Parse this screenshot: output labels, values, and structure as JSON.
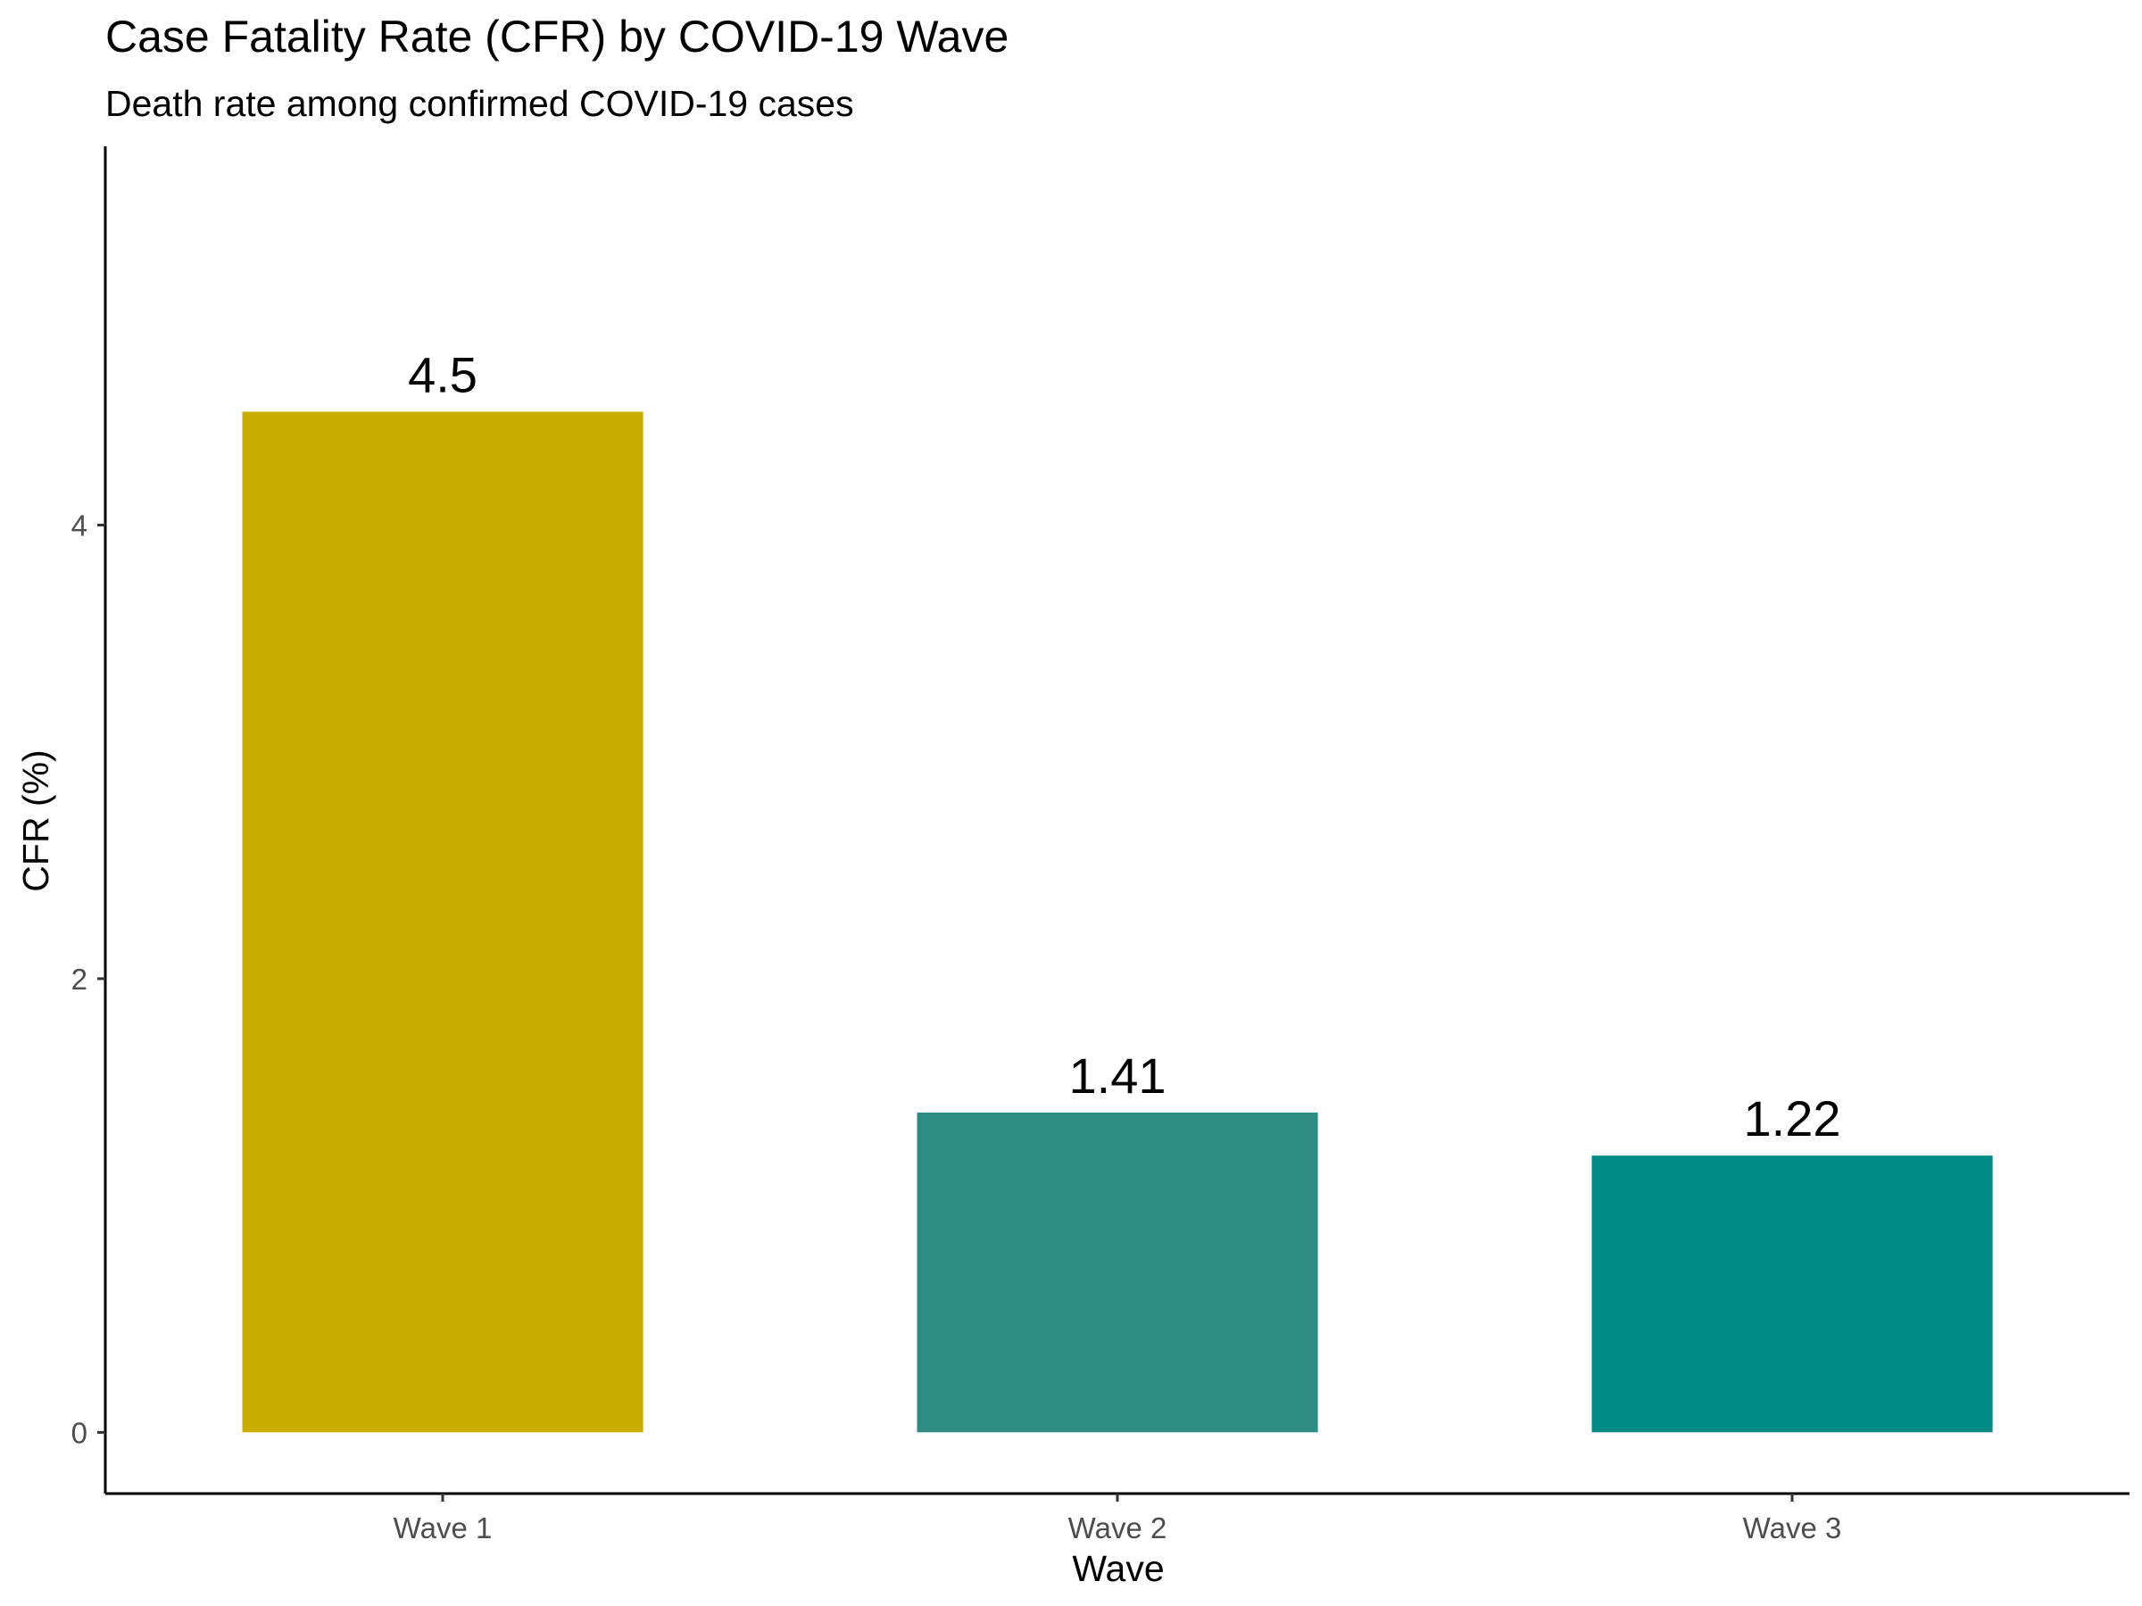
{
  "chart_data": {
    "type": "bar",
    "title": "Case Fatality Rate (CFR) by COVID-19 Wave",
    "subtitle": "Death rate among confirmed COVID-19 cases",
    "xlabel": "Wave",
    "ylabel": "CFR (%)",
    "categories": [
      "Wave 1",
      "Wave 2",
      "Wave 3"
    ],
    "values": [
      4.5,
      1.41,
      1.22
    ],
    "value_labels": [
      "4.5",
      "1.41",
      "1.22"
    ],
    "colors": [
      "#CCAE00",
      "#2F8C84",
      "#008B87"
    ],
    "ylim": [
      -0.27,
      5.67
    ],
    "yticks": [
      0,
      2,
      4
    ],
    "ytick_labels": [
      "0",
      "2",
      "4"
    ],
    "grid": false,
    "legend": "none"
  }
}
